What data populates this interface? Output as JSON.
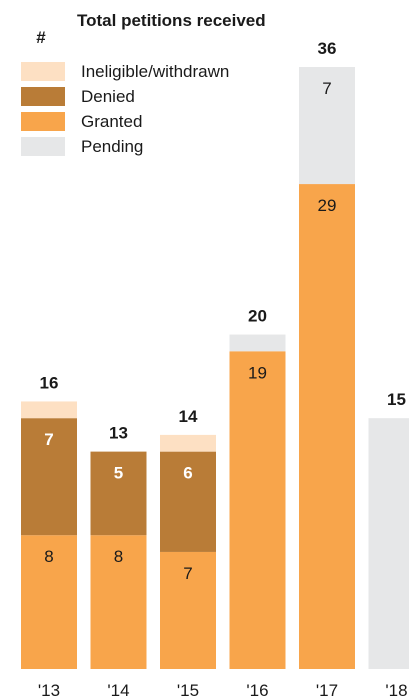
{
  "legend": {
    "symbol": "#",
    "title": "Total petitions received",
    "items": [
      {
        "label": "Ineligible/withdrawn",
        "color": "#fde0c3"
      },
      {
        "label": "Denied",
        "color": "#b97c37"
      },
      {
        "label": "Granted",
        "color": "#f8a54b"
      },
      {
        "label": "Pending",
        "color": "#e6e7e8"
      }
    ]
  },
  "chart_data": {
    "type": "bar",
    "stacked": true,
    "categories": [
      "'13",
      "'14",
      "'15",
      "'16",
      "'17",
      "'18"
    ],
    "series": [
      {
        "name": "Granted",
        "color": "#f8a54b",
        "values": [
          8,
          8,
          7,
          19,
          29,
          0
        ]
      },
      {
        "name": "Denied",
        "color": "#b97c37",
        "values": [
          7,
          5,
          6,
          0,
          0,
          0
        ]
      },
      {
        "name": "Ineligible/withdrawn",
        "color": "#fde0c3",
        "values": [
          1,
          0,
          1,
          0,
          0,
          0
        ]
      },
      {
        "name": "Pending",
        "color": "#e6e7e8",
        "values": [
          0,
          0,
          0,
          1,
          7,
          15
        ]
      }
    ],
    "totals": [
      16,
      13,
      14,
      20,
      36,
      15
    ],
    "segment_labels": {
      "Granted": [
        "8",
        "8",
        "7",
        "19",
        "29",
        ""
      ],
      "Denied": [
        "7",
        "5",
        "6",
        "",
        "",
        ""
      ],
      "Ineligible/withdrawn": [
        "",
        "",
        "",
        "",
        "",
        ""
      ],
      "Pending": [
        "",
        "",
        "",
        "",
        "7",
        ""
      ]
    },
    "bold_segment_labels": [
      "Denied"
    ],
    "ylim": [
      0,
      36
    ],
    "grid": false
  }
}
